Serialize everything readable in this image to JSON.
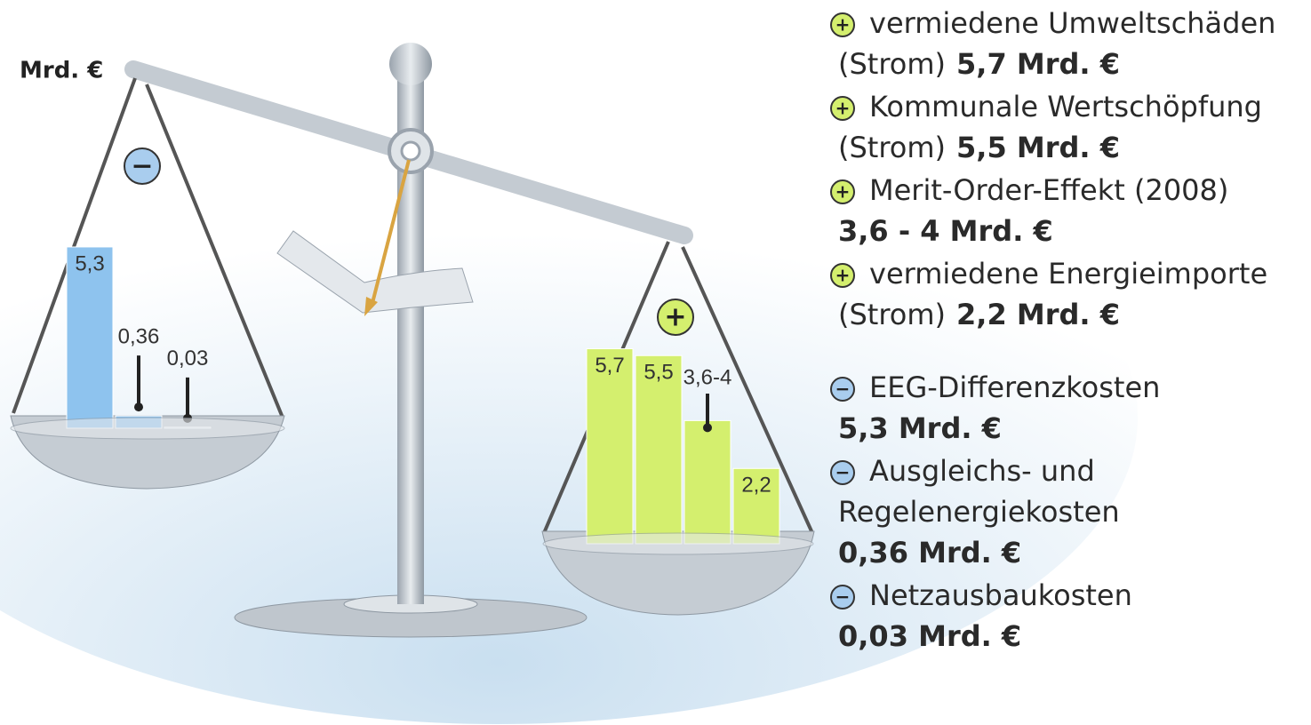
{
  "chart_data": [
    {
      "type": "bar",
      "sign": "−",
      "unit": "Mrd. €",
      "values": [
        5.3,
        0.36,
        0.03
      ],
      "value_labels": [
        "5,3",
        "0,36",
        "0,03"
      ],
      "color": "#8ec3ee"
    },
    {
      "type": "bar",
      "sign": "+",
      "values": [
        5.7,
        5.5,
        3.6,
        2.2
      ],
      "upper": [
        null,
        null,
        4,
        null
      ],
      "value_labels": [
        "5,7",
        "5,5",
        "3,6-4",
        "2,2"
      ],
      "color": "#d4ef6e"
    }
  ],
  "legend": {
    "items": [
      {
        "sign": "+",
        "lines": [
          [
            "vermiedene Umweltschäden"
          ],
          [
            "(Strom)",
            "5,7 Mrd. €"
          ]
        ]
      },
      {
        "sign": "+",
        "lines": [
          [
            "Kommunale Wertschöpfung"
          ],
          [
            "(Strom)",
            "5,5 Mrd. €"
          ]
        ]
      },
      {
        "sign": "+",
        "lines": [
          [
            "Merit-Order-Effekt (2008)"
          ],
          [
            "3,6 - 4 Mrd. €"
          ]
        ]
      },
      {
        "sign": "+",
        "lines": [
          [
            "vermiedene Energieimporte"
          ],
          [
            "(Strom)",
            "2,2 Mrd. €"
          ]
        ]
      },
      {
        "sign": "−",
        "lines": [
          [
            "EEG-Differenzkosten"
          ],
          [
            "5,3 Mrd. €"
          ]
        ]
      },
      {
        "sign": "−",
        "lines": [
          [
            "Ausgleichs- und"
          ],
          [
            "Regelenergiekosten"
          ],
          [
            "0,36 Mrd. €"
          ]
        ]
      },
      {
        "sign": "−",
        "lines": [
          [
            "Netzausbaukosten"
          ],
          [
            "0,03 Mrd. €"
          ]
        ]
      }
    ]
  }
}
